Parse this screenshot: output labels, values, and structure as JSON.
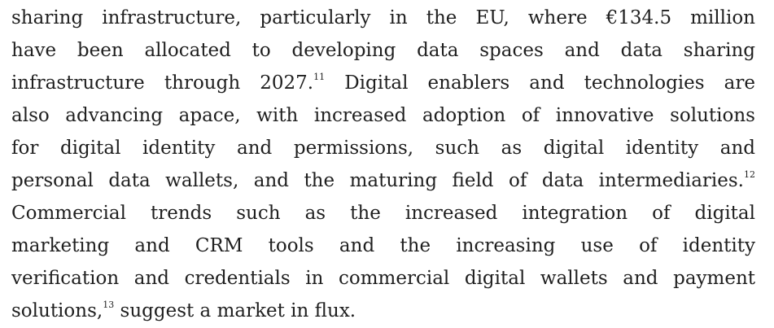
{
  "paragraph": {
    "lines": [
      {
        "parts": [
          {
            "text": "sharing infrastructure, particularly in the EU, where  €134.5 million"
          }
        ]
      },
      {
        "parts": [
          {
            "text": "have been allocated to developing data spaces and data sharing"
          }
        ]
      },
      {
        "parts": [
          {
            "text": "infrastructure through 2027."
          },
          {
            "sup": "11"
          },
          {
            "text": " Digital enablers and technologies are"
          }
        ]
      },
      {
        "parts": [
          {
            "text": "also advancing apace, with increased adoption of innovative solutions"
          }
        ]
      },
      {
        "parts": [
          {
            "text": "for digital identity and permissions, such as digital identity and"
          }
        ]
      },
      {
        "parts": [
          {
            "text": "personal data wallets, and the maturing field of data intermediaries."
          },
          {
            "sup": "12"
          }
        ]
      },
      {
        "parts": [
          {
            "text": "Commercial trends such as the increased integration of digital"
          }
        ]
      },
      {
        "parts": [
          {
            "text": "marketing and CRM tools and the increasing use of identity"
          }
        ]
      },
      {
        "parts": [
          {
            "text": "verification and credentials in commercial digital wallets and payment"
          }
        ]
      },
      {
        "parts": [
          {
            "text": "solutions,"
          },
          {
            "sup": "13"
          },
          {
            "text": " suggest a market in flux."
          }
        ]
      }
    ]
  }
}
